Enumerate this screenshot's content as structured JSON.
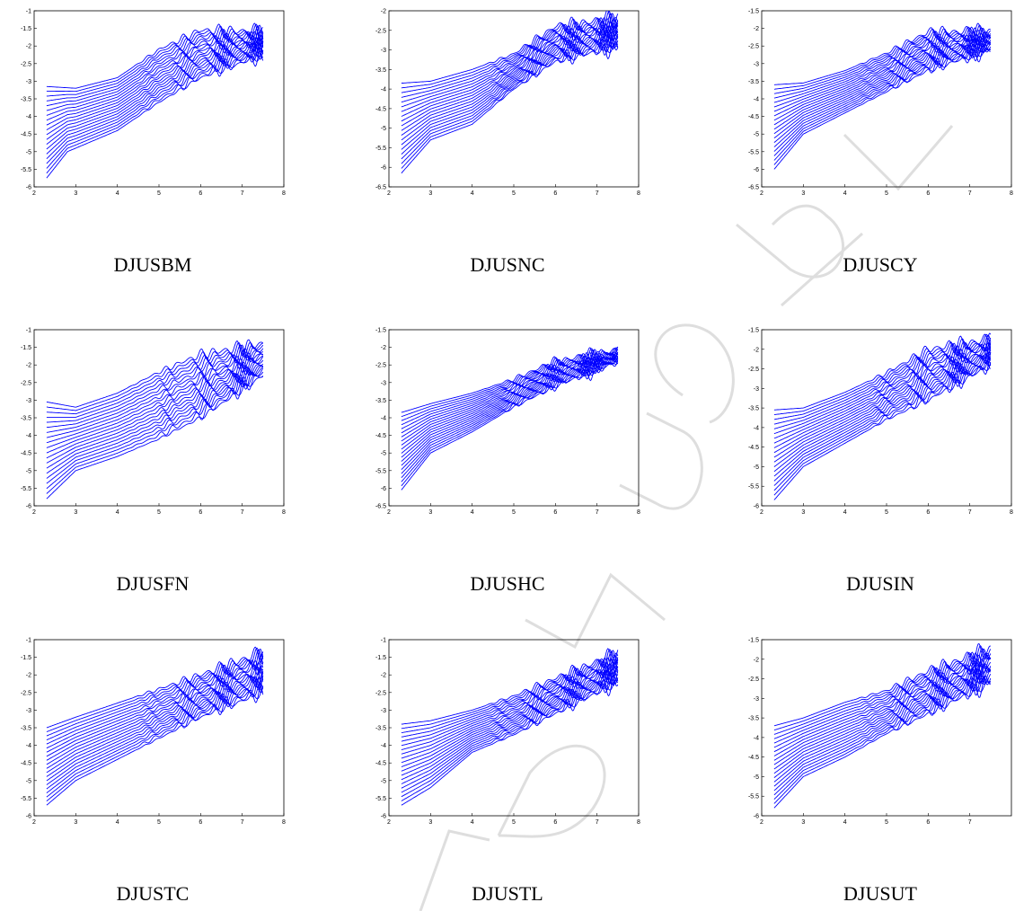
{
  "colors": {
    "series": "#0000ff",
    "axes": "#000000",
    "watermark": "#dedede"
  },
  "panels": [
    {
      "caption": "DJUSBM",
      "x_ticks": [
        "2",
        "3",
        "4",
        "5",
        "6",
        "7",
        "8"
      ],
      "y_ticks": [
        "-1",
        "-1.5",
        "-2",
        "-2.5",
        "-3",
        "-3.5",
        "-4",
        "-4.5",
        "-5",
        "-5.5",
        "-6"
      ]
    },
    {
      "caption": "DJUSNC",
      "x_ticks": [
        "2",
        "3",
        "4",
        "5",
        "6",
        "7",
        "8"
      ],
      "y_ticks": [
        "-2",
        "-2.5",
        "-3",
        "-3.5",
        "-4",
        "-4.5",
        "-5",
        "-5.5",
        "-6",
        "-6.5"
      ]
    },
    {
      "caption": "DJUSCY",
      "x_ticks": [
        "2",
        "3",
        "4",
        "5",
        "6",
        "7",
        "8"
      ],
      "y_ticks": [
        "-1.5",
        "-2",
        "-2.5",
        "-3",
        "-3.5",
        "-4",
        "-4.5",
        "-5",
        "-5.5",
        "-6",
        "-6.5"
      ]
    },
    {
      "caption": "DJUSFN",
      "x_ticks": [
        "2",
        "3",
        "4",
        "5",
        "6",
        "7",
        "8"
      ],
      "y_ticks": [
        "-1",
        "-1.5",
        "-2",
        "-2.5",
        "-3",
        "-3.5",
        "-4",
        "-4.5",
        "-5",
        "-5.5",
        "-6"
      ]
    },
    {
      "caption": "DJUSHC",
      "x_ticks": [
        "2",
        "3",
        "4",
        "5",
        "6",
        "7",
        "8"
      ],
      "y_ticks": [
        "-1.5",
        "-2",
        "-2.5",
        "-3",
        "-3.5",
        "-4",
        "-4.5",
        "-5",
        "-5.5",
        "-6",
        "-6.5"
      ]
    },
    {
      "caption": "DJUSIN",
      "x_ticks": [
        "2",
        "3",
        "4",
        "5",
        "6",
        "7",
        "8"
      ],
      "y_ticks": [
        "-1.5",
        "-2",
        "-2.5",
        "-3",
        "-3.5",
        "-4",
        "-4.5",
        "-5",
        "-5.5",
        "-6"
      ]
    },
    {
      "caption": "DJUSTC",
      "x_ticks": [
        "2",
        "3",
        "4",
        "5",
        "6",
        "7",
        "8"
      ],
      "y_ticks": [
        "-1",
        "-1.5",
        "-2",
        "-2.5",
        "-3",
        "-3.5",
        "-4",
        "-4.5",
        "-5",
        "-5.5",
        "-6"
      ]
    },
    {
      "caption": "DJUSTL",
      "x_ticks": [
        "2",
        "3",
        "4",
        "5",
        "6",
        "7",
        "8"
      ],
      "y_ticks": [
        "-1",
        "-1.5",
        "-2",
        "-2.5",
        "-3",
        "-3.5",
        "-4",
        "-4.5",
        "-5",
        "-5.5",
        "-6"
      ]
    },
    {
      "caption": "DJUSUT",
      "x_ticks": [
        "2",
        "3",
        "4",
        "5",
        "6",
        "7"
      ],
      "y_ticks": [
        "-1.5",
        "-2",
        "-2.5",
        "-3",
        "-3.5",
        "-4",
        "-4.5",
        "-5",
        "-5.5",
        "-6"
      ]
    }
  ],
  "chart_data": [
    {
      "type": "line",
      "title": "DJUSBM",
      "xlim": [
        2,
        8
      ],
      "ylim": [
        -6,
        -1
      ],
      "x_range": [
        2.3,
        7.5
      ],
      "line_count": 20,
      "lowest_line": [
        [
          2.3,
          -5.75
        ],
        [
          2.8,
          -5.0
        ],
        [
          4,
          -4.4
        ],
        [
          5,
          -3.6
        ],
        [
          6,
          -2.9
        ],
        [
          7.5,
          -2.25
        ]
      ],
      "highest_line": [
        [
          2.3,
          -3.15
        ],
        [
          3,
          -3.2
        ],
        [
          4,
          -2.9
        ],
        [
          5,
          -2.1
        ],
        [
          6,
          -1.55
        ],
        [
          7.5,
          -1.6
        ]
      ]
    },
    {
      "type": "line",
      "title": "DJUSNC",
      "xlim": [
        2,
        8
      ],
      "ylim": [
        -6.5,
        -2
      ],
      "x_range": [
        2.3,
        7.5
      ],
      "line_count": 20,
      "lowest_line": [
        [
          2.3,
          -6.15
        ],
        [
          3,
          -5.3
        ],
        [
          4,
          -4.9
        ],
        [
          5,
          -4.0
        ],
        [
          6,
          -3.3
        ],
        [
          7.5,
          -2.9
        ]
      ],
      "highest_line": [
        [
          2.3,
          -3.85
        ],
        [
          3,
          -3.8
        ],
        [
          4,
          -3.5
        ],
        [
          5,
          -3.1
        ],
        [
          6,
          -2.4
        ],
        [
          7.5,
          -2.2
        ]
      ]
    },
    {
      "type": "line",
      "title": "DJUSCY",
      "xlim": [
        2,
        8
      ],
      "ylim": [
        -6.5,
        -1.5
      ],
      "x_range": [
        2.3,
        7.5
      ],
      "line_count": 20,
      "lowest_line": [
        [
          2.3,
          -6.0
        ],
        [
          3,
          -5.0
        ],
        [
          4,
          -4.4
        ],
        [
          5,
          -3.8
        ],
        [
          6,
          -3.2
        ],
        [
          7.5,
          -2.6
        ]
      ],
      "highest_line": [
        [
          2.3,
          -3.6
        ],
        [
          3,
          -3.55
        ],
        [
          4,
          -3.2
        ],
        [
          5,
          -2.7
        ],
        [
          6,
          -2.1
        ],
        [
          7.5,
          -2.1
        ]
      ]
    },
    {
      "type": "line",
      "title": "DJUSFN",
      "xlim": [
        2,
        8
      ],
      "ylim": [
        -6,
        -1
      ],
      "x_range": [
        2.3,
        7.5
      ],
      "line_count": 20,
      "lowest_line": [
        [
          2.3,
          -5.8
        ],
        [
          3,
          -5.0
        ],
        [
          4,
          -4.6
        ],
        [
          5,
          -4.1
        ],
        [
          6,
          -3.5
        ],
        [
          7.5,
          -2.3
        ]
      ],
      "highest_line": [
        [
          2.3,
          -3.05
        ],
        [
          3,
          -3.2
        ],
        [
          4,
          -2.8
        ],
        [
          5,
          -2.2
        ],
        [
          6,
          -1.7
        ],
        [
          7.5,
          -1.4
        ]
      ]
    },
    {
      "type": "line",
      "title": "DJUSHC",
      "xlim": [
        2,
        8
      ],
      "ylim": [
        -6.5,
        -1.5
      ],
      "x_range": [
        2.3,
        7.5
      ],
      "line_count": 20,
      "lowest_line": [
        [
          2.3,
          -6.05
        ],
        [
          3,
          -5.0
        ],
        [
          4,
          -4.4
        ],
        [
          5,
          -3.7
        ],
        [
          6,
          -3.1
        ],
        [
          7.5,
          -2.4
        ]
      ],
      "highest_line": [
        [
          2.3,
          -3.85
        ],
        [
          3,
          -3.6
        ],
        [
          4,
          -3.3
        ],
        [
          5,
          -2.9
        ],
        [
          6,
          -2.4
        ],
        [
          7.5,
          -2.1
        ]
      ]
    },
    {
      "type": "line",
      "title": "DJUSIN",
      "xlim": [
        2,
        8
      ],
      "ylim": [
        -6,
        -1.5
      ],
      "x_range": [
        2.3,
        7.5
      ],
      "line_count": 20,
      "lowest_line": [
        [
          2.3,
          -5.85
        ],
        [
          3,
          -5.0
        ],
        [
          4,
          -4.4
        ],
        [
          5,
          -3.8
        ],
        [
          6,
          -3.3
        ],
        [
          7.5,
          -2.4
        ]
      ],
      "highest_line": [
        [
          2.3,
          -3.55
        ],
        [
          3,
          -3.5
        ],
        [
          4,
          -3.1
        ],
        [
          5,
          -2.6
        ],
        [
          6,
          -2.0
        ],
        [
          7.5,
          -1.75
        ]
      ]
    },
    {
      "type": "line",
      "title": "DJUSTC",
      "xlim": [
        2,
        8
      ],
      "ylim": [
        -6,
        -1
      ],
      "x_range": [
        2.3,
        7.5
      ],
      "line_count": 20,
      "lowest_line": [
        [
          2.3,
          -5.7
        ],
        [
          3,
          -5.0
        ],
        [
          4,
          -4.4
        ],
        [
          5,
          -3.8
        ],
        [
          6,
          -3.2
        ],
        [
          7.5,
          -2.5
        ]
      ],
      "highest_line": [
        [
          2.3,
          -3.5
        ],
        [
          3,
          -3.2
        ],
        [
          4,
          -2.8
        ],
        [
          5,
          -2.4
        ],
        [
          6,
          -2.0
        ],
        [
          7.5,
          -1.35
        ]
      ]
    },
    {
      "type": "line",
      "title": "DJUSTL",
      "xlim": [
        2,
        8
      ],
      "ylim": [
        -6,
        -1
      ],
      "x_range": [
        2.3,
        7.5
      ],
      "line_count": 20,
      "lowest_line": [
        [
          2.3,
          -5.7
        ],
        [
          3,
          -5.2
        ],
        [
          4,
          -4.2
        ],
        [
          5,
          -3.7
        ],
        [
          6,
          -3.1
        ],
        [
          7.5,
          -2.2
        ]
      ],
      "highest_line": [
        [
          2.3,
          -3.4
        ],
        [
          3,
          -3.3
        ],
        [
          4,
          -3.0
        ],
        [
          5,
          -2.6
        ],
        [
          6,
          -2.1
        ],
        [
          7.5,
          -1.4
        ]
      ]
    },
    {
      "type": "line",
      "title": "DJUSUT",
      "xlim": [
        2,
        8
      ],
      "ylim": [
        -6,
        -1.5
      ],
      "x_range": [
        2.3,
        7.5
      ],
      "line_count": 20,
      "lowest_line": [
        [
          2.3,
          -5.8
        ],
        [
          3,
          -5.0
        ],
        [
          4,
          -4.5
        ],
        [
          5,
          -3.9
        ],
        [
          6,
          -3.4
        ],
        [
          7.5,
          -2.6
        ]
      ],
      "highest_line": [
        [
          2.3,
          -3.7
        ],
        [
          3,
          -3.5
        ],
        [
          4,
          -3.1
        ],
        [
          5,
          -2.8
        ],
        [
          6,
          -2.3
        ],
        [
          7.5,
          -1.75
        ]
      ]
    }
  ]
}
